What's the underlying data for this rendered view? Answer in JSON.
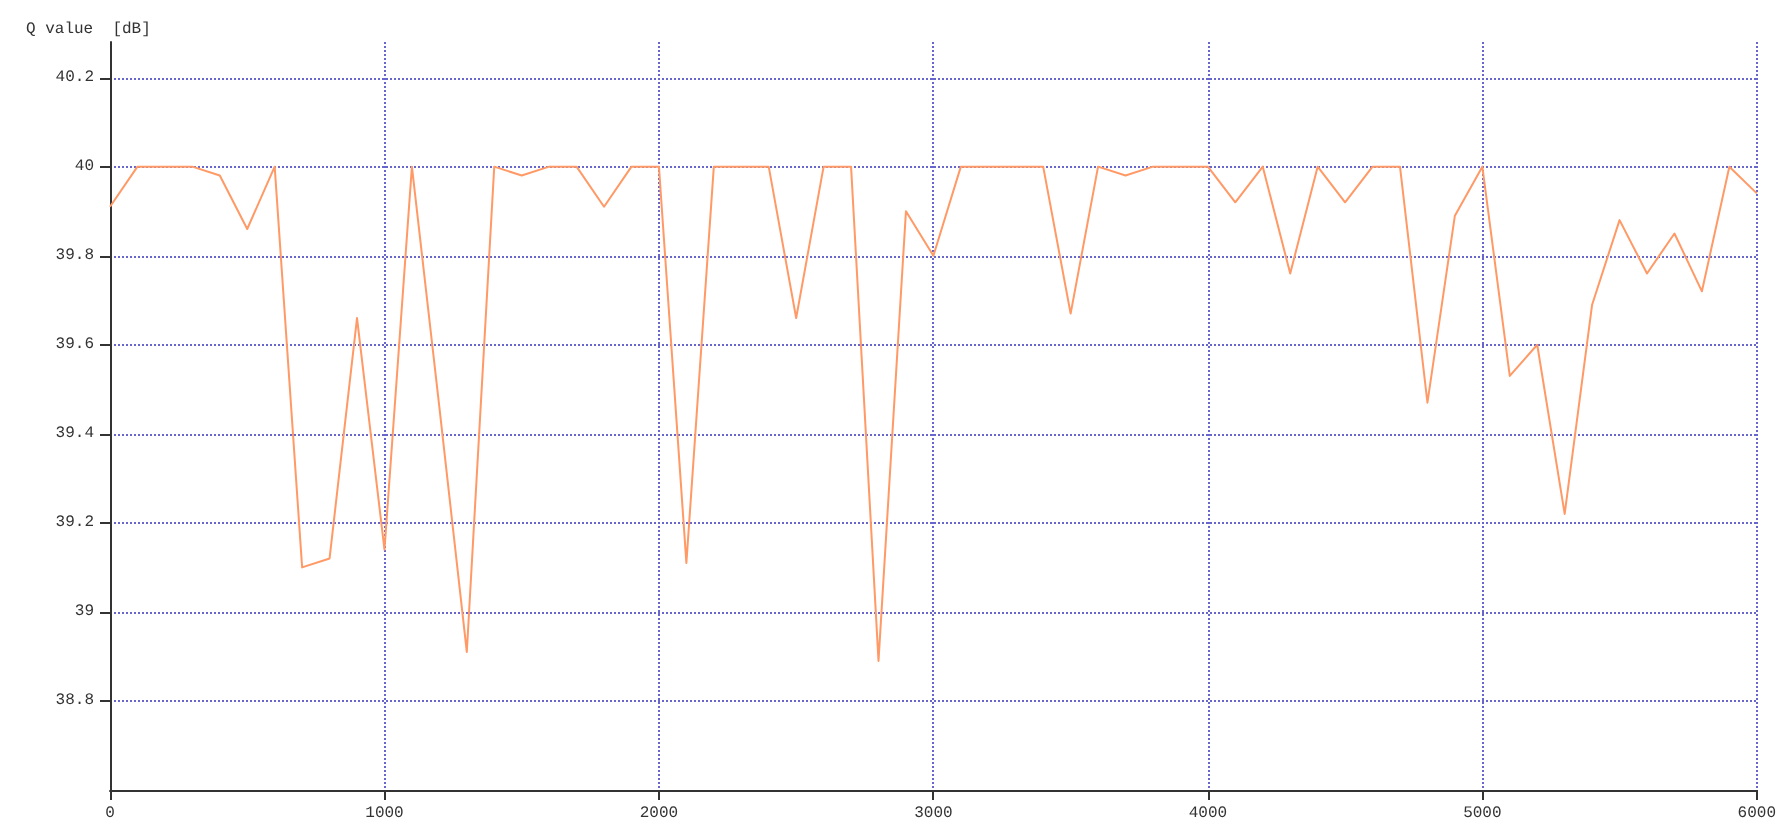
{
  "chart_data": {
    "type": "line",
    "ylabel": "Q value  [dB]",
    "x": [
      0,
      100,
      200,
      300,
      400,
      500,
      600,
      700,
      800,
      900,
      1000,
      1100,
      1200,
      1300,
      1400,
      1500,
      1600,
      1700,
      1800,
      1900,
      2000,
      2100,
      2200,
      2300,
      2400,
      2500,
      2600,
      2700,
      2800,
      2900,
      3000,
      3100,
      3200,
      3300,
      3400,
      3500,
      3600,
      3700,
      3800,
      3900,
      4000,
      4100,
      4200,
      4300,
      4400,
      4500,
      4600,
      4700,
      4800,
      4900,
      5000,
      5100,
      5200,
      5300,
      5400,
      5500,
      5600,
      5700,
      5800,
      5900,
      6000
    ],
    "series": [
      {
        "color": "#ff9966",
        "values": [
          39.91,
          40,
          40,
          40,
          39.98,
          39.86,
          40,
          39.1,
          39.12,
          39.66,
          39.14,
          40,
          39.46,
          38.91,
          40,
          39.98,
          40,
          40,
          39.91,
          40,
          40,
          39.11,
          40,
          40,
          40,
          39.66,
          40,
          40,
          38.89,
          39.9,
          39.8,
          40,
          40,
          40,
          40,
          39.67,
          40,
          39.98,
          40,
          40,
          40,
          39.92,
          40,
          39.76,
          40,
          39.92,
          40,
          40,
          39.47,
          39.89,
          40,
          39.53,
          39.6,
          39.22,
          39.69,
          39.88,
          39.76,
          39.85,
          39.72,
          40,
          39.94
        ]
      }
    ],
    "xlim": [
      0,
      6000
    ],
    "xticks": [
      0,
      1000,
      2000,
      3000,
      4000,
      5000,
      6000
    ],
    "ylim": [
      38.6,
      40.28
    ],
    "yticks": [
      38.8,
      39,
      39.2,
      39.4,
      39.6,
      39.8,
      40,
      40.2
    ],
    "grid": true,
    "line_style": "solid",
    "marker": "none"
  }
}
